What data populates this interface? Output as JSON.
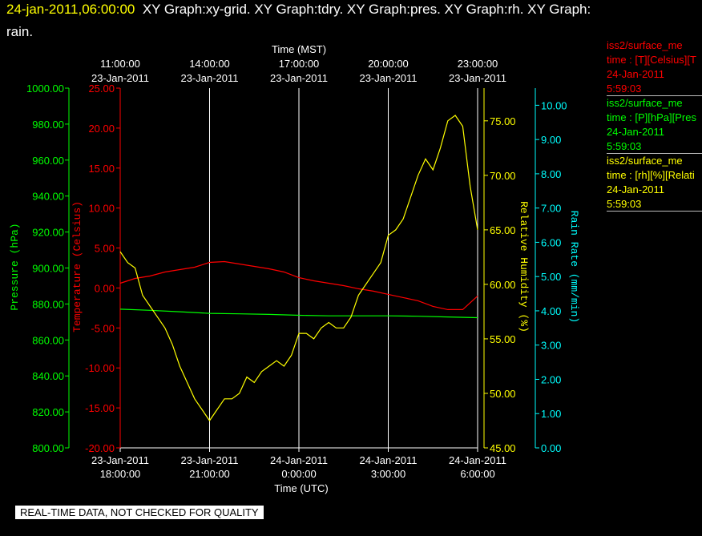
{
  "header": {
    "timestamp": "24-jan-2011,06:00:00",
    "title_rest": "XY Graph:xy-grid.  XY Graph:tdry.  XY Graph:pres.  XY Graph:rh.  XY Graph:",
    "title_line2": "rain."
  },
  "legend": [
    {
      "line1": "iss2/surface_me",
      "line2": "time : [T][Celsius][T",
      "line3": "24-Jan-2011",
      "line4": "5:59:03",
      "color": "#ff0000"
    },
    {
      "line1": "iss2/surface_me",
      "line2": "time : [P][hPa][Pres",
      "line3": "24-Jan-2011",
      "line4": "5:59:03",
      "color": "#00ff00"
    },
    {
      "line1": "iss2/surface_me",
      "line2": "time : [rh][%][Relati",
      "line3": "24-Jan-2011",
      "line4": "5:59:03",
      "color": "#ffff00"
    }
  ],
  "banner": "REAL-TIME DATA, NOT CHECKED FOR QUALITY",
  "colors": {
    "temperature": "#ff0000",
    "pressure": "#00ff00",
    "humidity": "#ffff00",
    "rain": "#00ffff",
    "grid": "#ffffff"
  },
  "chart_data": {
    "type": "line",
    "top_axis": {
      "title": "Time (MST)",
      "ticks": [
        {
          "l1": "11:00:00",
          "l2": "23-Jan-2011"
        },
        {
          "l1": "14:00:00",
          "l2": "23-Jan-2011"
        },
        {
          "l1": "17:00:00",
          "l2": "23-Jan-2011"
        },
        {
          "l1": "20:00:00",
          "l2": "23-Jan-2011"
        },
        {
          "l1": "23:00:00",
          "l2": "23-Jan-2011"
        }
      ]
    },
    "bottom_axis": {
      "title": "Time (UTC)",
      "ticks": [
        {
          "l1": "23-Jan-2011",
          "l2": "18:00:00"
        },
        {
          "l1": "23-Jan-2011",
          "l2": "21:00:00"
        },
        {
          "l1": "24-Jan-2011",
          "l2": "0:00:00"
        },
        {
          "l1": "24-Jan-2011",
          "l2": "3:00:00"
        },
        {
          "l1": "24-Jan-2011",
          "l2": "6:00:00"
        }
      ]
    },
    "xlim_hours": [
      0,
      12
    ],
    "x_tick_hours": [
      0,
      3,
      6,
      9,
      12
    ],
    "axes": {
      "pressure": {
        "label": "Pressure (hPa)",
        "ylim": [
          800,
          1000
        ],
        "ticks": [
          "800.00",
          "820.00",
          "840.00",
          "860.00",
          "880.00",
          "900.00",
          "920.00",
          "940.00",
          "960.00",
          "980.00",
          "1000.00"
        ]
      },
      "temperature": {
        "label": "Temperature (Celsius)",
        "ylim": [
          -20,
          25
        ],
        "ticks": [
          "-20.00",
          "-15.00",
          "-10.00",
          "-5.00",
          "0.00",
          "5.00",
          "10.00",
          "15.00",
          "20.00",
          "25.00"
        ]
      },
      "humidity": {
        "label": "Relative Humidity (%)",
        "ylim": [
          45,
          78
        ],
        "ticks": [
          "45.00",
          "50.00",
          "55.00",
          "60.00",
          "65.00",
          "70.00",
          "75.00"
        ]
      },
      "rain": {
        "label": "Rain Rate (mm/min)",
        "ylim": [
          0,
          10.5
        ],
        "ticks": [
          "0.00",
          "1.00",
          "2.00",
          "3.00",
          "4.00",
          "5.00",
          "6.00",
          "7.00",
          "8.00",
          "9.00",
          "10.00"
        ]
      }
    },
    "series": [
      {
        "name": "Temperature",
        "axis": "temperature",
        "color": "#ff0000",
        "x": [
          0,
          0.5,
          1,
          1.5,
          2,
          2.5,
          3,
          3.5,
          4,
          4.5,
          5,
          5.5,
          6,
          6.5,
          7,
          7.5,
          8,
          8.5,
          9,
          9.5,
          10,
          10.5,
          11,
          11.5,
          12
        ],
        "y": [
          0.6,
          1.2,
          1.5,
          2.0,
          2.3,
          2.6,
          3.2,
          3.3,
          3.0,
          2.7,
          2.4,
          2.0,
          1.3,
          0.9,
          0.6,
          0.3,
          -0.1,
          -0.4,
          -0.8,
          -1.2,
          -1.6,
          -2.3,
          -2.7,
          -2.7,
          -1.0
        ]
      },
      {
        "name": "Pressure",
        "axis": "pressure",
        "color": "#00ff00",
        "x": [
          0,
          1,
          2,
          3,
          4,
          5,
          6,
          7,
          8,
          9,
          10,
          11,
          12
        ],
        "y": [
          877.1,
          876.5,
          875.7,
          874.8,
          874.5,
          874.2,
          873.7,
          873.4,
          873.4,
          873.4,
          873.2,
          872.8,
          872.4
        ]
      },
      {
        "name": "Relative Humidity",
        "axis": "humidity",
        "color": "#ffff00",
        "x": [
          0,
          0.25,
          0.5,
          0.75,
          1,
          1.25,
          1.5,
          1.75,
          2,
          2.25,
          2.5,
          2.75,
          3,
          3.25,
          3.5,
          3.75,
          4,
          4.25,
          4.5,
          4.75,
          5,
          5.25,
          5.5,
          5.75,
          6,
          6.25,
          6.5,
          6.75,
          7,
          7.25,
          7.5,
          7.75,
          8,
          8.25,
          8.5,
          8.75,
          9,
          9.25,
          9.5,
          9.75,
          10,
          10.25,
          10.5,
          10.75,
          11,
          11.25,
          11.5,
          11.75,
          12
        ],
        "y": [
          63.0,
          62.0,
          61.5,
          59.0,
          58.0,
          57.0,
          56.0,
          54.5,
          52.5,
          51.0,
          49.5,
          48.5,
          47.5,
          48.5,
          49.5,
          49.5,
          50.0,
          51.5,
          51.0,
          52.0,
          52.5,
          53.0,
          52.5,
          53.5,
          55.5,
          55.5,
          55.0,
          56.0,
          56.5,
          56.0,
          56.0,
          57.0,
          59.0,
          60.0,
          61.0,
          62.0,
          64.5,
          65.0,
          66.0,
          68.0,
          70.0,
          71.5,
          70.5,
          72.5,
          75.0,
          75.5,
          74.5,
          69.0,
          65.0
        ]
      },
      {
        "name": "Rain Rate",
        "axis": "rain",
        "color": "#00ffff",
        "x": [],
        "y": []
      }
    ]
  }
}
